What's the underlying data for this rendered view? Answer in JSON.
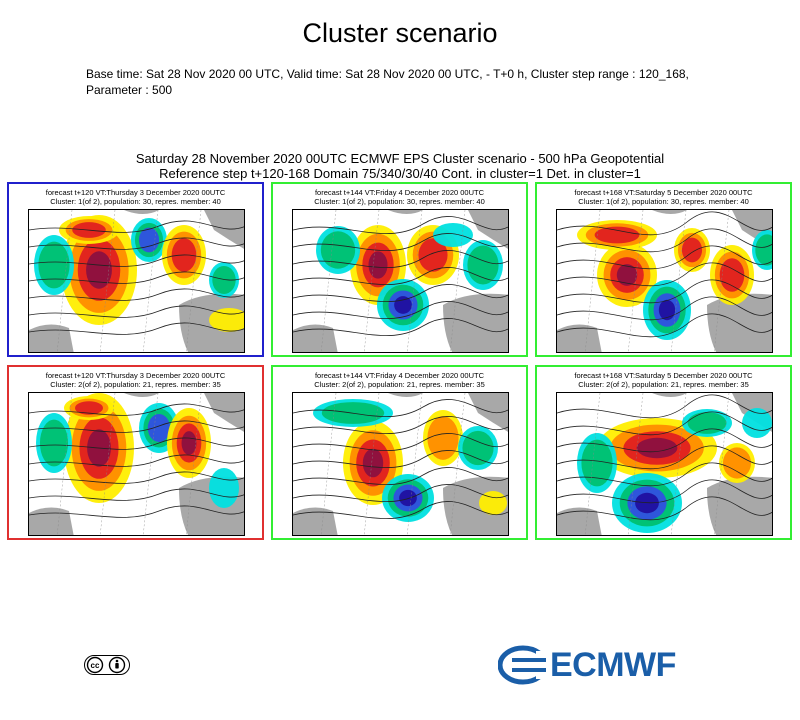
{
  "page": {
    "title": "Cluster scenario",
    "meta_line1": "Base time: Sat 28 Nov 2020 00 UTC, Valid time: Sat 28 Nov 2020 00 UTC, - T+0 h, Cluster step range : 120_168,",
    "meta_line2": "Parameter : 500"
  },
  "figure": {
    "title_line1": "Saturday 28 November 2020 00UTC ECMWF EPS Cluster scenario - 500 hPa Geopotential",
    "title_line2": "Reference step t+120-168 Domain 75/340/30/40 Cont. in cluster=1 Det. in cluster=1"
  },
  "panels": [
    {
      "header1": "forecast t+120 VT:Thursday 3 December 2020 00UTC",
      "header2": "Cluster: 1(of 2), population: 30, repres. member: 40",
      "border_color": "#2020cc"
    },
    {
      "header1": "forecast t+144 VT:Friday 4 December 2020 00UTC",
      "header2": "Cluster: 1(of 2), population: 30, repres. member: 40",
      "border_color": "#33ee33"
    },
    {
      "header1": "forecast t+168 VT:Saturday 5 December 2020 00UTC",
      "header2": "Cluster: 1(of 2), population: 30, repres. member: 40",
      "border_color": "#33ee33"
    },
    {
      "header1": "forecast t+120 VT:Thursday 3 December 2020 00UTC",
      "header2": "Cluster: 2(of 2), population: 21, repres. member: 35",
      "border_color": "#e03030"
    },
    {
      "header1": "forecast t+144 VT:Friday 4 December 2020 00UTC",
      "header2": "Cluster: 2(of 2), population: 21, repres. member: 35",
      "border_color": "#33ee33"
    },
    {
      "header1": "forecast t+168 VT:Saturday 5 December 2020 00UTC",
      "header2": "Cluster: 2(of 2), population: 21, repres. member: 35",
      "border_color": "#33ee33"
    }
  ],
  "anomaly_colors": {
    "strong_positive": "#8b1040",
    "positive": "#e02020",
    "weak_positive": "#ff8c00",
    "slight_positive": "#ffee00",
    "slight_negative": "#00e0e0",
    "weak_negative": "#00c070",
    "negative": "#3050e0",
    "strong_negative": "#2010a0",
    "land": "#999999"
  },
  "footer": {
    "license_icon": "creative-commons-by-icon",
    "brand": "ECMWF",
    "brand_color": "#1a5ea8"
  }
}
